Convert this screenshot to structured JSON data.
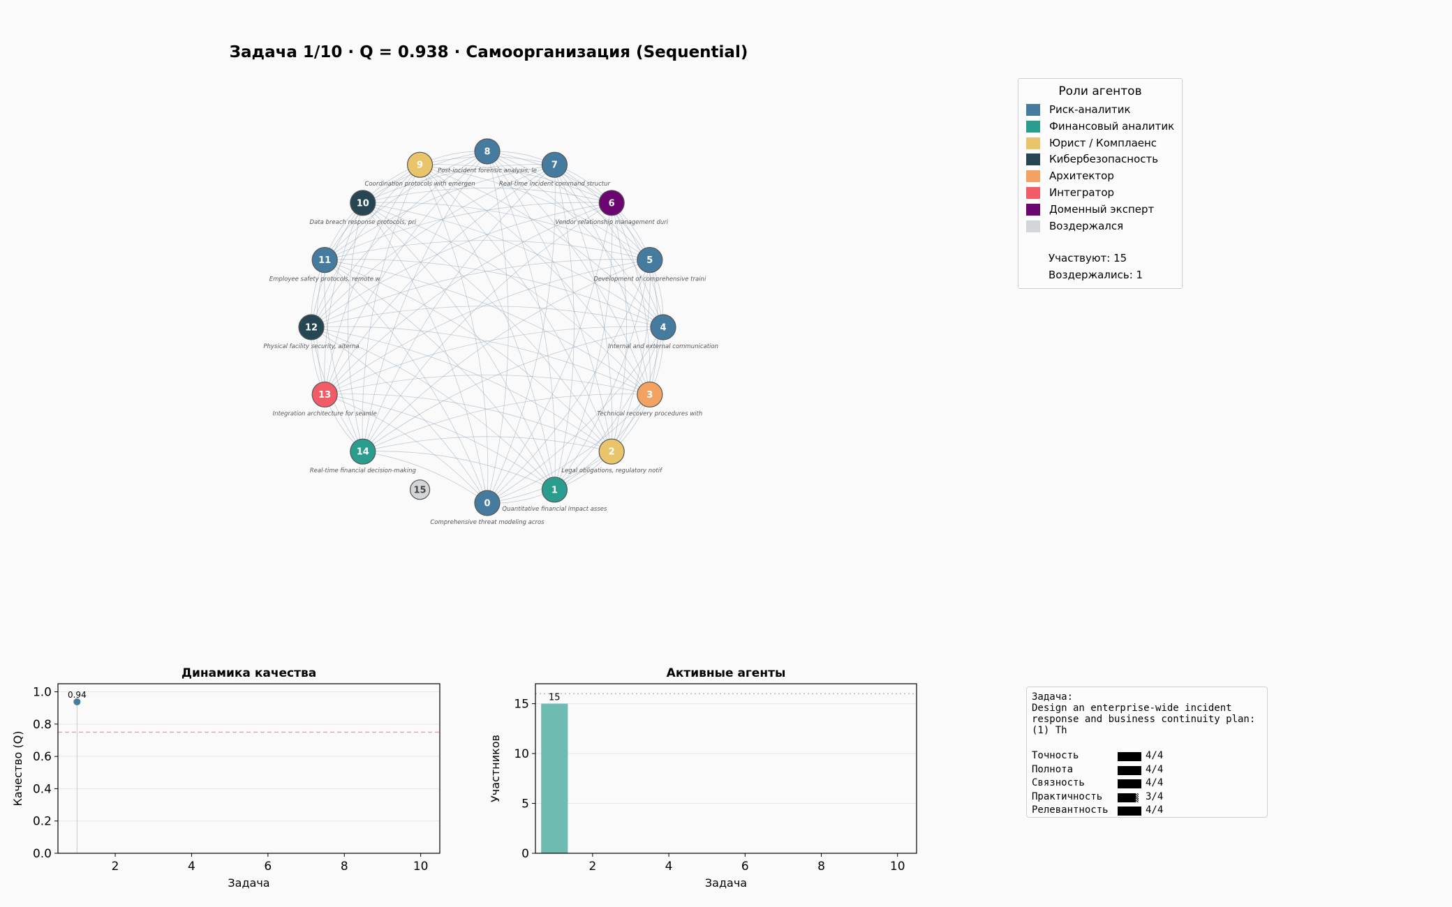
{
  "title": "Задача 1/10  ·  Q = 0.938  ·  Самоорганизация (Sequential)",
  "colors": {
    "risk": "#467ba0",
    "finance": "#2a9d8f",
    "legal": "#e9c46a",
    "cyber": "#264653",
    "architect": "#f4a261",
    "integrator": "#f25c66",
    "domain": "#6a0572",
    "abstained": "#d3d6d9",
    "edge": "#8fa6ba",
    "bar": "#6dbbb1",
    "threshold": "#e7a0a6"
  },
  "legend": {
    "title": "Роли агентов",
    "items": [
      {
        "label": "Риск-аналитик",
        "color": "#467ba0"
      },
      {
        "label": "Финансовый аналитик",
        "color": "#2a9d8f"
      },
      {
        "label": "Юрист / Комплаенс",
        "color": "#e9c46a"
      },
      {
        "label": "Кибербезопасность",
        "color": "#264653"
      },
      {
        "label": "Архитектор",
        "color": "#f4a261"
      },
      {
        "label": "Интегратор",
        "color": "#f25c66"
      },
      {
        "label": "Доменный эксперт",
        "color": "#6a0572"
      },
      {
        "label": "Воздержался",
        "color": "#d3d6d9"
      }
    ],
    "participating": "Участвуют: 15",
    "abstained": "Воздержались: 1"
  },
  "network": {
    "agents": [
      {
        "id": "0",
        "role": "risk",
        "label": "Comprehensive threat modeling acros"
      },
      {
        "id": "1",
        "role": "finance",
        "label": "Quantitative financial impact asses"
      },
      {
        "id": "2",
        "role": "legal",
        "label": "Legal obligations, regulatory notif"
      },
      {
        "id": "3",
        "role": "architect",
        "label": "Technical recovery procedures with"
      },
      {
        "id": "4",
        "role": "risk",
        "label": "Internal and external communication"
      },
      {
        "id": "5",
        "role": "risk",
        "label": "Development of comprehensive traini"
      },
      {
        "id": "6",
        "role": "domain",
        "label": "Vendor relationship management duri"
      },
      {
        "id": "7",
        "role": "risk",
        "label": "Real-time incident command structur"
      },
      {
        "id": "8",
        "role": "risk",
        "label": "Post-incident forensic analysis, le"
      },
      {
        "id": "9",
        "role": "legal",
        "label": "Coordination protocols with emergen"
      },
      {
        "id": "10",
        "role": "cyber",
        "label": "Data breach response protocols, pri"
      },
      {
        "id": "11",
        "role": "risk",
        "label": "Employee safety protocols, remote w"
      },
      {
        "id": "12",
        "role": "cyber",
        "label": "Physical facility security, alterna"
      },
      {
        "id": "13",
        "role": "integrator",
        "label": "Integration architecture for seamle"
      },
      {
        "id": "14",
        "role": "finance",
        "label": "Real-time financial decision-making"
      },
      {
        "id": "15",
        "role": "abstained",
        "label": ""
      }
    ]
  },
  "chart_data": [
    {
      "type": "line",
      "title": "Динамика качества",
      "xlabel": "Задача",
      "ylabel": "Качество (Q)",
      "xlim": [
        0.5,
        10.5
      ],
      "ylim": [
        0,
        1.05
      ],
      "xticks": [
        "2",
        "4",
        "6",
        "8",
        "10"
      ],
      "yticks": [
        "0.0",
        "0.2",
        "0.4",
        "0.6",
        "0.8",
        "1.0"
      ],
      "threshold": 0.75,
      "series": [
        {
          "name": "Q",
          "x": [
            1
          ],
          "y": [
            0.938
          ]
        }
      ],
      "data_labels": [
        "0.94"
      ]
    },
    {
      "type": "bar",
      "title": "Активные агенты",
      "xlabel": "Задача",
      "ylabel": "Участников",
      "xlim": [
        0.5,
        10.5
      ],
      "ylim": [
        0,
        17
      ],
      "xticks": [
        "2",
        "4",
        "6",
        "8",
        "10"
      ],
      "yticks": [
        "0",
        "5",
        "10",
        "15"
      ],
      "total_agents": 16,
      "x": [
        1
      ],
      "values": [
        15
      ],
      "data_labels": [
        "15"
      ]
    }
  ],
  "task_box": {
    "header": "Задача:",
    "lines": [
      "Design an enterprise-wide incident",
      "response and business continuity plan:",
      "(1) Th"
    ],
    "scores": [
      {
        "label": "Точность",
        "value": 4,
        "max": 4,
        "text": "4/4"
      },
      {
        "label": "Полнота",
        "value": 4,
        "max": 4,
        "text": "4/4"
      },
      {
        "label": "Связность",
        "value": 4,
        "max": 4,
        "text": "4/4"
      },
      {
        "label": "Практичность",
        "value": 3,
        "max": 4,
        "text": "3/4"
      },
      {
        "label": "Релевантность",
        "value": 4,
        "max": 4,
        "text": "4/4"
      }
    ]
  }
}
